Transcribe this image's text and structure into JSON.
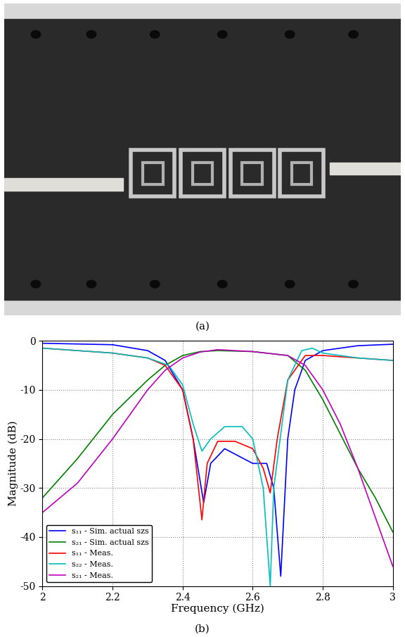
{
  "panel_labels": [
    "(a)",
    "(b)"
  ],
  "chart_data": {
    "type": "line",
    "x_label": "Frequency (GHz)",
    "y_label": "Magnitude (dB)",
    "xlim": [
      2,
      3
    ],
    "xticks": [
      2,
      2.2,
      2.4,
      2.6,
      2.8,
      3
    ],
    "ylim": [
      -50,
      0
    ],
    "yticks": [
      -50,
      -40,
      -30,
      -20,
      -10,
      0
    ],
    "grid": true,
    "legend": "lower left",
    "series": [
      {
        "name": "s₁₁ - Sim. actual szs",
        "color": "#0000ff",
        "line_style": "solid",
        "x": [
          2.0,
          2.2,
          2.3,
          2.35,
          2.4,
          2.43,
          2.46,
          2.48,
          2.52,
          2.56,
          2.6,
          2.64,
          2.66,
          2.68,
          2.7,
          2.72,
          2.75,
          2.8,
          2.9,
          3.0
        ],
        "values": [
          -0.5,
          -0.8,
          -2,
          -4,
          -10,
          -20,
          -33,
          -25,
          -22,
          -23.5,
          -25,
          -25,
          -30,
          -48,
          -20,
          -10,
          -4,
          -2,
          -1,
          -0.7
        ]
      },
      {
        "name": "s₂₁ - Sim. actual szs",
        "color": "#008000",
        "line_style": "solid",
        "x": [
          2.0,
          2.1,
          2.2,
          2.3,
          2.35,
          2.4,
          2.45,
          2.5,
          2.6,
          2.7,
          2.75,
          2.8,
          2.85,
          2.9,
          2.95,
          3.0
        ],
        "values": [
          -32,
          -24,
          -15,
          -8,
          -5,
          -3,
          -2.2,
          -2,
          -2.2,
          -3,
          -6,
          -12,
          -19,
          -26,
          -32,
          -39
        ]
      },
      {
        "name": "s₁₁ - Meas.",
        "color": "#ff0000",
        "line_style": "solid",
        "x": [
          2.0,
          2.2,
          2.3,
          2.35,
          2.4,
          2.43,
          2.455,
          2.47,
          2.5,
          2.55,
          2.6,
          2.63,
          2.65,
          2.67,
          2.7,
          2.75,
          2.8,
          2.9,
          3.0
        ],
        "values": [
          -1.5,
          -2.5,
          -3.5,
          -5,
          -10,
          -20,
          -36.5,
          -25,
          -20.5,
          -20.5,
          -22,
          -26,
          -31,
          -20,
          -8,
          -3,
          -3,
          -3.5,
          -4
        ]
      },
      {
        "name": "s₂₂ - Meas.",
        "color": "#00bfbf",
        "line_style": "solid",
        "x": [
          2.0,
          2.2,
          2.3,
          2.36,
          2.4,
          2.43,
          2.455,
          2.48,
          2.52,
          2.57,
          2.6,
          2.63,
          2.65,
          2.66,
          2.7,
          2.74,
          2.77,
          2.8,
          2.9,
          3.0
        ],
        "values": [
          -1.5,
          -2.5,
          -3.5,
          -5,
          -9,
          -17,
          -22.5,
          -20,
          -17.5,
          -17.5,
          -20,
          -30,
          -50,
          -30,
          -8,
          -2,
          -1.5,
          -2.5,
          -3.5,
          -4
        ]
      },
      {
        "name": "s₂₁ - Meas.",
        "color": "#bf00bf",
        "line_style": "solid",
        "x": [
          2.0,
          2.1,
          2.2,
          2.3,
          2.35,
          2.4,
          2.45,
          2.5,
          2.6,
          2.7,
          2.75,
          2.8,
          2.85,
          2.9,
          2.95,
          3.0
        ],
        "values": [
          -35,
          -29,
          -20,
          -10,
          -6,
          -3.5,
          -2.3,
          -1.8,
          -2.2,
          -3,
          -5,
          -10,
          -17,
          -26,
          -36,
          -46
        ]
      }
    ]
  }
}
